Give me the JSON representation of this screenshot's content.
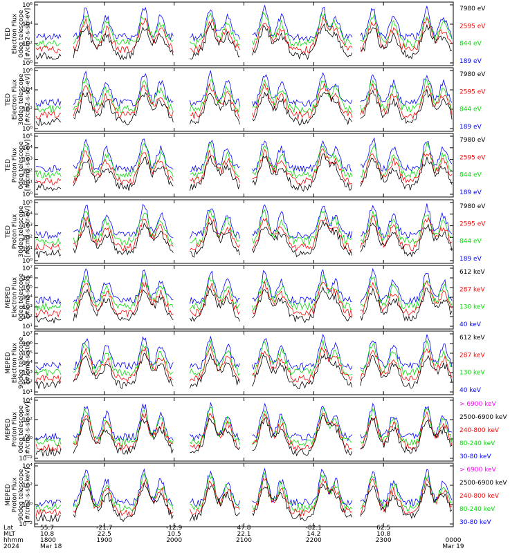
{
  "chart_data": {
    "type": "line",
    "x_time_labels": [
      "1800",
      "1900",
      "2000",
      "2100",
      "2200",
      "2300",
      "0000"
    ],
    "footer": {
      "row_labels": [
        "Lat",
        "MLT",
        "hhmm",
        "2024"
      ],
      "columns": [
        {
          "lat": "55.7",
          "mlt": "10.8",
          "hhmm": "1800",
          "date": "Mar 18"
        },
        {
          "lat": "-21.7",
          "mlt": "22.5",
          "hhmm": "1900",
          "date": ""
        },
        {
          "lat": "-12.9",
          "mlt": "10.5",
          "hhmm": "2000",
          "date": ""
        },
        {
          "lat": "47.8",
          "mlt": "22.1",
          "hhmm": "2100",
          "date": ""
        },
        {
          "lat": "-82.1",
          "mlt": "14.2",
          "hhmm": "2200",
          "date": ""
        },
        {
          "lat": "62.5",
          "mlt": "10.8",
          "hhmm": "2300",
          "date": ""
        },
        {
          "lat": "",
          "mlt": "",
          "hhmm": "0000",
          "date": "Mar 19"
        }
      ]
    },
    "panels": [
      {
        "ylabel": [
          "TED",
          "Electron Flux",
          "0deg telescope",
          "[#/cm2-s-str-eV]"
        ],
        "yticks": [
          "10⁶",
          "10⁴",
          "10²",
          "10⁰"
        ],
        "legend": [
          {
            "text": "7980 eV",
            "color": "#000000"
          },
          {
            "text": "2595 eV",
            "color": "#ff0000"
          },
          {
            "text": "844 eV",
            "color": "#00dd00"
          },
          {
            "text": "189 eV",
            "color": "#0000ff"
          }
        ]
      },
      {
        "ylabel": [
          "TED",
          "Electron Flux",
          "30deg telescope",
          "[#/cm2-s-str-eV]"
        ],
        "yticks": [
          "10⁶",
          "10⁴",
          "10²",
          "10⁰"
        ],
        "legend": [
          {
            "text": "7980 eV",
            "color": "#000000"
          },
          {
            "text": "2595 eV",
            "color": "#ff0000"
          },
          {
            "text": "844 eV",
            "color": "#00dd00"
          },
          {
            "text": "189 eV",
            "color": "#0000ff"
          }
        ]
      },
      {
        "ylabel": [
          "TED",
          "Proton Flux",
          "0deg telescope",
          "[#/cm2-s-str-eV]"
        ],
        "yticks": [
          "10⁵",
          "10⁴",
          "10³",
          "10²",
          "10¹",
          "10⁰"
        ],
        "legend": [
          {
            "text": "7980 eV",
            "color": "#000000"
          },
          {
            "text": "2595 eV",
            "color": "#ff0000"
          },
          {
            "text": "844 eV",
            "color": "#00dd00"
          },
          {
            "text": "189 eV",
            "color": "#0000ff"
          }
        ]
      },
      {
        "ylabel": [
          "TED",
          "Proton Flux",
          "30deg telescope",
          "[#/cm2-s-str-eV]"
        ],
        "yticks": [
          "10⁵",
          "10⁴",
          "10³",
          "10²",
          "10¹",
          "10⁰"
        ],
        "legend": [
          {
            "text": "7980 eV",
            "color": "#000000"
          },
          {
            "text": "2595 eV",
            "color": "#ff0000"
          },
          {
            "text": "844 eV",
            "color": "#00dd00"
          },
          {
            "text": "189 eV",
            "color": "#0000ff"
          }
        ]
      },
      {
        "ylabel": [
          "MEPED",
          "Electron Flux",
          "0deg telescope",
          "[#/cm2-s-str]"
        ],
        "yticks": [
          "10⁷",
          "10⁶",
          "10⁵",
          "10⁴",
          "10³",
          "10²",
          "10¹"
        ],
        "legend": [
          {
            "text": "612 keV",
            "color": "#000000"
          },
          {
            "text": "287 keV",
            "color": "#ff0000"
          },
          {
            "text": "130 keV",
            "color": "#00dd00"
          },
          {
            "text": "40 keV",
            "color": "#0000ff"
          }
        ]
      },
      {
        "ylabel": [
          "MEPED",
          "Electron Flux",
          "90deg telescope",
          "[#/cm2-s-str]"
        ],
        "yticks": [
          "10⁷",
          "10⁶",
          "10⁵",
          "10⁴",
          "10³",
          "10²",
          "10¹"
        ],
        "legend": [
          {
            "text": "612 keV",
            "color": "#000000"
          },
          {
            "text": "287 keV",
            "color": "#ff0000"
          },
          {
            "text": "130 keV",
            "color": "#00dd00"
          },
          {
            "text": "40 keV",
            "color": "#0000ff"
          }
        ]
      },
      {
        "ylabel": [
          "MEPED",
          "Proton Flux",
          "0deg telescope",
          "[#/cm2-s-str-keV]"
        ],
        "yticks": [
          "10⁴",
          "10²",
          "10⁰",
          "10⁻²"
        ],
        "legend": [
          {
            "text": "> 6900 keV",
            "color": "#ff00ff"
          },
          {
            "text": "2500-6900 keV",
            "color": "#000000"
          },
          {
            "text": "240-800 keV",
            "color": "#ff0000"
          },
          {
            "text": "80-240 keV",
            "color": "#00dd00"
          },
          {
            "text": "30-80 keV",
            "color": "#0000ff"
          }
        ]
      },
      {
        "ylabel": [
          "MEPED",
          "Proton Flux",
          "90deg telescope",
          "[#/cm2-s-str-keV]"
        ],
        "yticks": [
          "10⁴",
          "10²",
          "10⁰",
          "10⁻²"
        ],
        "legend": [
          {
            "text": "> 6900 keV",
            "color": "#ff00ff"
          },
          {
            "text": "2500-6900 keV",
            "color": "#000000"
          },
          {
            "text": "240-800 keV",
            "color": "#ff0000"
          },
          {
            "text": "80-240 keV",
            "color": "#00dd00"
          },
          {
            "text": "30-80 keV",
            "color": "#0000ff"
          }
        ]
      }
    ]
  }
}
